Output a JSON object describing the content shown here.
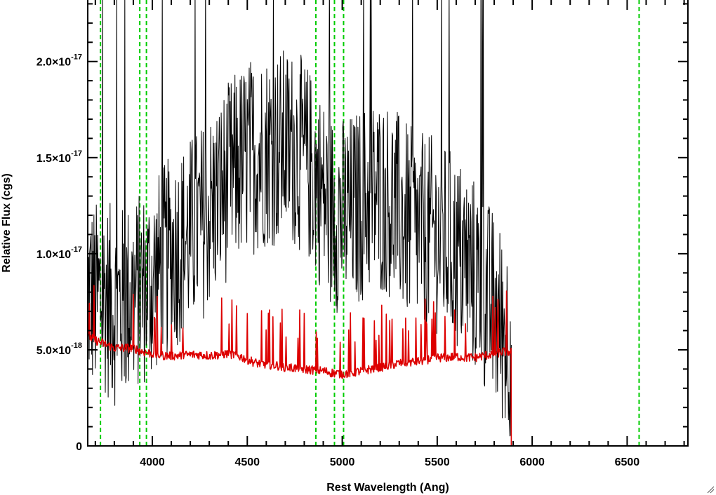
{
  "chart_data": {
    "type": "line",
    "title": "",
    "xlabel": "Rest Wavelength (Ang)",
    "ylabel": "Relative Flux (cgs)",
    "xlim": [
      3660,
      6820
    ],
    "ylim": [
      0,
      2.32e-17
    ],
    "x_ticks": [
      {
        "value": 4000,
        "label": "4000"
      },
      {
        "value": 4500,
        "label": "4500"
      },
      {
        "value": 5000,
        "label": "5000"
      },
      {
        "value": 5500,
        "label": "5500"
      },
      {
        "value": 6000,
        "label": "6000"
      },
      {
        "value": 6500,
        "label": "6500"
      }
    ],
    "y_ticks": [
      {
        "value": 0,
        "mantissa": "0",
        "exponent": ""
      },
      {
        "value": 5e-18,
        "mantissa": "5.0×10",
        "exponent": "-18"
      },
      {
        "value": 1e-17,
        "mantissa": "1.0×10",
        "exponent": "-17"
      },
      {
        "value": 1.5e-17,
        "mantissa": "1.5×10",
        "exponent": "-17"
      },
      {
        "value": 2e-17,
        "mantissa": "2.0×10",
        "exponent": "-17"
      }
    ],
    "reference_lines_x": [
      3727,
      3934,
      3969,
      4861,
      4959,
      5007,
      6563
    ],
    "reference_line_color": "#00cc00",
    "series": [
      {
        "color": "#000000",
        "x": [
          3660,
          3700,
          3750,
          3800,
          3850,
          3900,
          3950,
          4000,
          4050,
          4100,
          4150,
          4200,
          4250,
          4300,
          4350,
          4400,
          4450,
          4500,
          4550,
          4600,
          4650,
          4700,
          4750,
          4800,
          4850,
          4900,
          4950,
          5000,
          5050,
          5100,
          5150,
          5200,
          5250,
          5300,
          5350,
          5400,
          5450,
          5500,
          5550,
          5600,
          5650,
          5700,
          5750,
          5800,
          5850,
          5890
        ],
        "y": [
          8e-18,
          7.6e-18,
          7.8e-18,
          7.2e-18,
          7.4e-18,
          7.8e-18,
          8.2e-18,
          8.6e-18,
          9.4e-18,
          1e-17,
          1.05e-17,
          1.1e-17,
          1.15e-17,
          1.22e-17,
          1.3e-17,
          1.38e-17,
          1.45e-17,
          1.5e-17,
          1.52e-17,
          1.55e-17,
          1.55e-17,
          1.56e-17,
          1.55e-17,
          1.5e-17,
          1.42e-17,
          1.3e-17,
          1.22e-17,
          1.2e-17,
          1.22e-17,
          1.25e-17,
          1.3e-17,
          1.3e-17,
          1.28e-17,
          1.22e-17,
          1.15e-17,
          1.12e-17,
          1.1e-17,
          1.1e-17,
          1.05e-17,
          1e-17,
          9.5e-18,
          8.8e-18,
          8e-18,
          7e-18,
          6e-18,
          5.5e-18
        ],
        "noise": 5.2e-18,
        "then_zero_to": 6820
      },
      {
        "color": "#dd0000",
        "x": [
          3660,
          3700,
          3750,
          3800,
          3850,
          3900,
          3950,
          4000,
          4050,
          4100,
          4150,
          4200,
          4250,
          4300,
          4350,
          4400,
          4450,
          4500,
          4550,
          4600,
          4650,
          4700,
          4750,
          4800,
          4850,
          4900,
          4950,
          5000,
          5050,
          5100,
          5150,
          5200,
          5250,
          5300,
          5350,
          5400,
          5450,
          5500,
          5550,
          5600,
          5650,
          5700,
          5750,
          5800,
          5850,
          5890
        ],
        "y": [
          5.7e-18,
          5.5e-18,
          5.3e-18,
          5.1e-18,
          5.1e-18,
          5.1e-18,
          4.9e-18,
          4.8e-18,
          4.7e-18,
          4.7e-18,
          4.7e-18,
          4.75e-18,
          4.75e-18,
          4.7e-18,
          4.75e-18,
          4.8e-18,
          4.7e-18,
          4.5e-18,
          4.3e-18,
          4.25e-18,
          4.2e-18,
          4.1e-18,
          4.05e-18,
          4e-18,
          3.95e-18,
          3.9e-18,
          3.8e-18,
          3.75e-18,
          3.8e-18,
          3.9e-18,
          4e-18,
          4.1e-18,
          4.2e-18,
          4.3e-18,
          4.35e-18,
          4.4e-18,
          4.5e-18,
          4.6e-18,
          4.6e-18,
          4.65e-18,
          4.6e-18,
          4.6e-18,
          4.7e-18,
          4.8e-18,
          4.9e-18,
          4.9e-18
        ],
        "noise": 6e-19,
        "then_zero_to": 6820
      }
    ],
    "grid": false,
    "legend": "none"
  }
}
